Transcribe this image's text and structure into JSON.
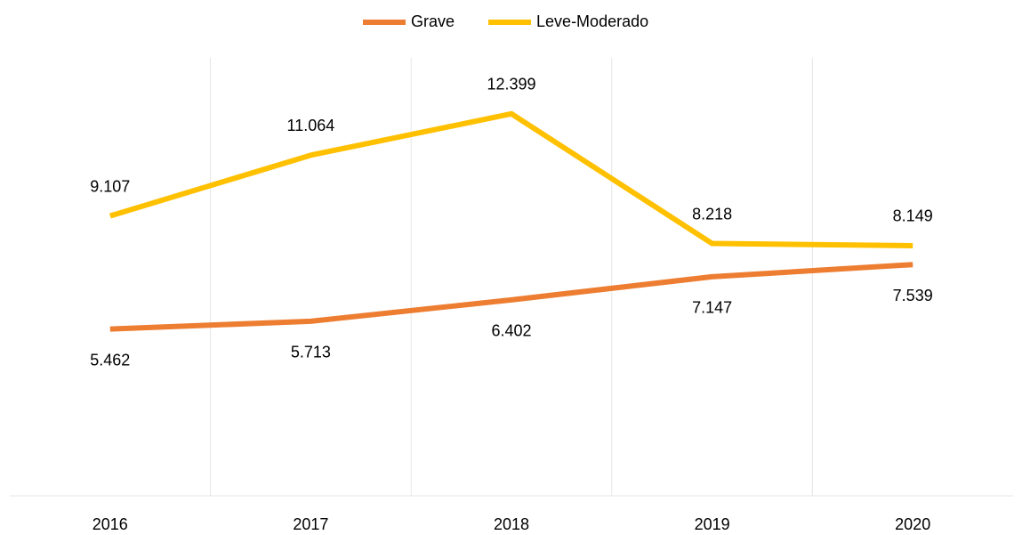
{
  "chart_data": {
    "type": "line",
    "categories": [
      "2016",
      "2017",
      "2018",
      "2019",
      "2020"
    ],
    "series": [
      {
        "name": "Grave",
        "color": "#ED7D31",
        "values": [
          5462,
          5713,
          6402,
          7147,
          7539
        ],
        "value_labels": [
          "5.462",
          "5.713",
          "6.402",
          "7.147",
          "7.539"
        ]
      },
      {
        "name": "Leve-Moderado",
        "color": "#FFC000",
        "values": [
          9107,
          11064,
          12399,
          8218,
          8149
        ],
        "value_labels": [
          "9.107",
          "11.064",
          "12.399",
          "8.218",
          "8.149"
        ]
      }
    ],
    "ylim": [
      0,
      14000
    ],
    "legend": "top"
  }
}
